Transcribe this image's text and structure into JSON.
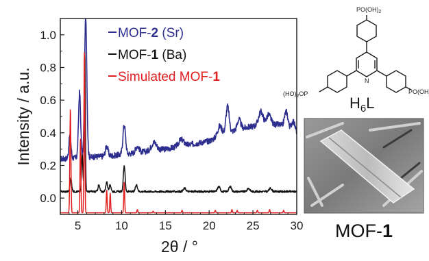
{
  "chart_data": {
    "type": "line",
    "xlabel": "2θ / °",
    "ylabel": "Intensity / a.u.",
    "xlim": [
      3,
      30
    ],
    "ylim": [
      -0.1,
      1.1
    ],
    "x_ticks": [
      "5",
      "10",
      "15",
      "20",
      "25",
      "30"
    ],
    "y_ticks": [
      "0.0",
      "0.2",
      "0.4",
      "0.6",
      "0.8",
      "1.0"
    ],
    "grid": false,
    "legend_position": "top-center",
    "series": [
      {
        "name": "MOF-2 (Sr)",
        "name_plain": "MOF-",
        "name_bold": "2",
        "name_suffix": " (Sr)",
        "color": "#2e2e8f",
        "baseline": 0.24,
        "noise": 0.018,
        "trend": [
          [
            3,
            0.24
          ],
          [
            6,
            0.25
          ],
          [
            9,
            0.26
          ],
          [
            12,
            0.28
          ],
          [
            15,
            0.3
          ],
          [
            18,
            0.33
          ],
          [
            20,
            0.35
          ],
          [
            22,
            0.4
          ],
          [
            24,
            0.43
          ],
          [
            26,
            0.45
          ],
          [
            28,
            0.45
          ],
          [
            30,
            0.4
          ]
        ],
        "peaks": [
          [
            4.1,
            0.14,
            0.12
          ],
          [
            5.2,
            0.4,
            0.12
          ],
          [
            5.9,
            0.86,
            0.13
          ],
          [
            8.3,
            0.06,
            0.15
          ],
          [
            10.3,
            0.18,
            0.15
          ],
          [
            11.8,
            0.04,
            0.2
          ],
          [
            13.7,
            0.05,
            0.3
          ],
          [
            16.8,
            0.04,
            0.3
          ],
          [
            21.2,
            0.06,
            0.25
          ],
          [
            22.1,
            0.16,
            0.18
          ],
          [
            23.4,
            0.06,
            0.2
          ],
          [
            25.9,
            0.08,
            0.25
          ],
          [
            26.8,
            0.06,
            0.25
          ],
          [
            28.8,
            0.1,
            0.2
          ],
          [
            29.6,
            0.06,
            0.2
          ]
        ]
      },
      {
        "name": "MOF-1 (Ba)",
        "name_plain": "MOF-",
        "name_bold": "1",
        "name_suffix": " (Ba)",
        "color": "#111111",
        "baseline": 0.04,
        "noise": 0.006,
        "trend": [
          [
            3,
            0.04
          ],
          [
            30,
            0.04
          ]
        ],
        "peaks": [
          [
            4.2,
            0.08,
            0.1
          ],
          [
            5.5,
            0.23,
            0.08
          ],
          [
            5.8,
            0.86,
            0.06
          ],
          [
            7.4,
            0.04,
            0.1
          ],
          [
            8.3,
            0.06,
            0.1
          ],
          [
            8.7,
            0.04,
            0.1
          ],
          [
            10.3,
            0.16,
            0.1
          ],
          [
            11.7,
            0.04,
            0.12
          ],
          [
            17.2,
            0.02,
            0.15
          ],
          [
            21.1,
            0.03,
            0.15
          ],
          [
            22.4,
            0.03,
            0.15
          ],
          [
            24.5,
            0.02,
            0.15
          ],
          [
            27.0,
            0.02,
            0.15
          ]
        ]
      },
      {
        "name": "Simulated MOF-1",
        "name_plain": "Simulated MOF-",
        "name_bold": "1",
        "name_suffix": "",
        "color": "#e02020",
        "baseline": -0.09,
        "noise": 0,
        "trend": [
          [
            3,
            -0.09
          ],
          [
            30,
            -0.09
          ]
        ],
        "peaks": [
          [
            4.15,
            0.64,
            0.06
          ],
          [
            5.3,
            0.46,
            0.05
          ],
          [
            5.75,
            1.0,
            0.05
          ],
          [
            8.3,
            0.14,
            0.05
          ],
          [
            8.7,
            0.12,
            0.05
          ],
          [
            10.3,
            0.19,
            0.05
          ],
          [
            11.8,
            0.02,
            0.05
          ],
          [
            13.6,
            0.01,
            0.05
          ],
          [
            16.9,
            0.015,
            0.05
          ],
          [
            20.7,
            0.015,
            0.05
          ],
          [
            22.6,
            0.02,
            0.05
          ],
          [
            23.2,
            0.015,
            0.05
          ],
          [
            25.5,
            0.015,
            0.05
          ],
          [
            26.9,
            0.02,
            0.05
          ],
          [
            28.5,
            0.015,
            0.05
          ]
        ]
      }
    ]
  },
  "structure": {
    "formula_base": "H",
    "formula_sub": "6",
    "formula_tail": "L",
    "top_group": "PO(OH)",
    "top_group_sub": "2",
    "left_group": "(HO)",
    "left_group_sub": "2",
    "left_group_tail": "OP",
    "right_group": "PO(OH)",
    "atom_n": "N"
  },
  "micrograph": {
    "caption_plain": "MOF-",
    "caption_bold": "1"
  }
}
